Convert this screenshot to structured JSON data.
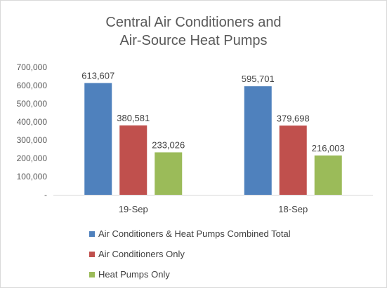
{
  "chart_data": {
    "type": "bar",
    "title": [
      "Central Air Conditioners and",
      "Air-Source Heat Pumps"
    ],
    "categories": [
      "19-Sep",
      "18-Sep"
    ],
    "series": [
      {
        "name": "Air Conditioners & Heat Pumps Combined Total",
        "color": "#4f81bd",
        "values": [
          613607,
          595701
        ],
        "labels": [
          "613,607",
          "595,701"
        ]
      },
      {
        "name": "Air Conditioners Only",
        "color": "#c0504d",
        "values": [
          380581,
          379698
        ],
        "labels": [
          "380,581",
          "379,698"
        ]
      },
      {
        "name": "Heat Pumps Only",
        "color": "#9bbb59",
        "values": [
          233026,
          216003
        ],
        "labels": [
          "233,026",
          "216,003"
        ]
      }
    ],
    "ylim": [
      0,
      700000
    ],
    "yticks": [
      0,
      100000,
      200000,
      300000,
      400000,
      500000,
      600000,
      700000
    ],
    "ytick_labels": [
      "-",
      "100,000",
      "200,000",
      "300,000",
      "400,000",
      "500,000",
      "600,000",
      "700,000"
    ],
    "grid": false,
    "legend_position": "bottom"
  }
}
